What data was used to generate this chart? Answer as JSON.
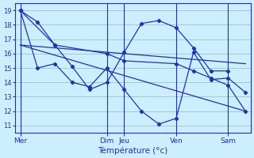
{
  "xlabel": "Température (°c)",
  "background_color": "#cceeff",
  "grid_color": "#99cccc",
  "line_color": "#2233aa",
  "ylim": [
    10.5,
    19.5
  ],
  "yticks": [
    11,
    12,
    13,
    14,
    15,
    16,
    17,
    18,
    19
  ],
  "day_labels": [
    "Mer",
    "Dim",
    "Jeu",
    "Ven",
    "Sam"
  ],
  "day_x": [
    0,
    5,
    6,
    9,
    12
  ],
  "xlim": [
    -0.3,
    13.3
  ],
  "lines": [
    {
      "x": [
        0,
        1,
        2,
        3,
        4,
        5,
        6,
        7,
        8,
        9,
        10,
        11,
        12
      ],
      "y": [
        19.0,
        18.2,
        16.6,
        15.1,
        13.5,
        14.0,
        16.1,
        18.1,
        18.3,
        17.8,
        16.4,
        14.8,
        14.8
      ]
    },
    {
      "x": [
        0,
        1,
        2,
        3,
        4,
        5,
        6,
        7,
        8,
        9,
        10,
        11,
        12,
        13
      ],
      "y": [
        19.0,
        15.0,
        15.3,
        14.0,
        13.7,
        15.0,
        13.5,
        12.0,
        11.1,
        11.5,
        16.1,
        14.2,
        14.3,
        13.3
      ]
    },
    {
      "x": [
        0,
        2,
        5,
        6,
        9,
        10,
        11,
        12,
        13
      ],
      "y": [
        19.0,
        16.6,
        16.0,
        15.5,
        15.3,
        14.8,
        14.3,
        13.8,
        12.0
      ]
    }
  ],
  "trend_lines": [
    {
      "x": [
        0,
        13
      ],
      "y": [
        16.6,
        15.3
      ]
    },
    {
      "x": [
        0,
        13
      ],
      "y": [
        16.6,
        12.0
      ]
    }
  ],
  "vline_x": [
    0,
    5,
    6,
    9,
    12
  ]
}
